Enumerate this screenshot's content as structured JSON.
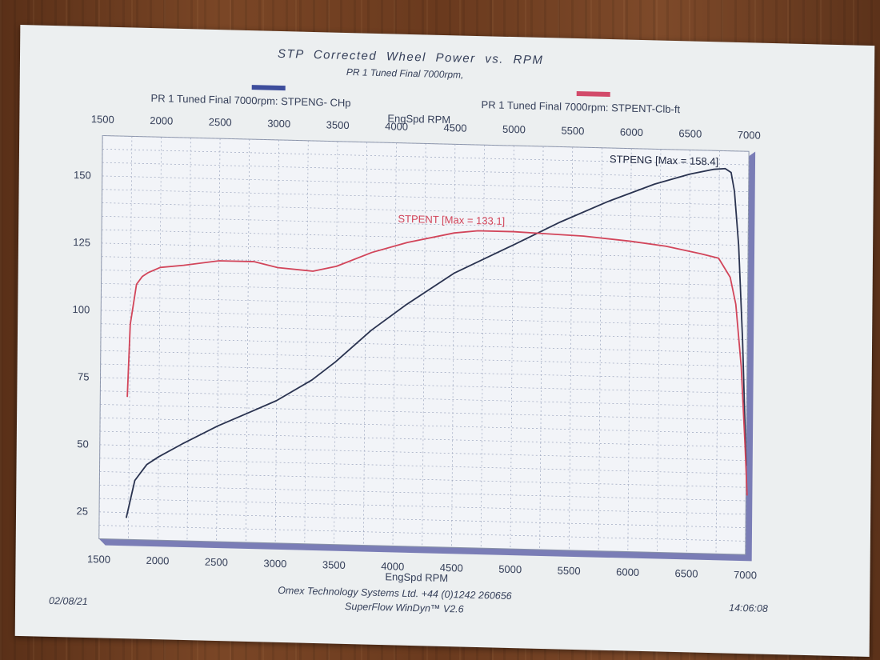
{
  "colors": {
    "power": "#2a3350",
    "torque": "#d2455a",
    "swatch_power": "#3d4d9c",
    "swatch_torque": "#d24a6a",
    "grid": "#9aa4bd",
    "plot_bg": "#f2f4f8",
    "shadow": "#7a7db6",
    "text": "#36405a"
  },
  "header": {
    "title": "STP Corrected Wheel Power vs. RPM",
    "subtitle": "PR 1 Tuned Final 7000rpm,"
  },
  "legend": {
    "power": "PR 1 Tuned Final 7000rpm: STPENG- CHp",
    "torque": "PR 1 Tuned Final 7000rpm: STPENT-Clb-ft"
  },
  "footer": {
    "date": "02/08/21",
    "company": "Omex Technology Systems Ltd. +44 (0)1242 260656",
    "software": "SuperFlow WinDyn™ V2.6",
    "time": "14:06:08"
  },
  "chart_data": {
    "type": "line",
    "xlabel": "EngSpd RPM",
    "x_top_label": "EngSpd RPM",
    "xlim": [
      1500,
      7000
    ],
    "ylim": [
      15,
      165
    ],
    "xticks": [
      1500,
      2000,
      2500,
      3000,
      3500,
      4000,
      4500,
      5000,
      5500,
      6000,
      6500,
      7000
    ],
    "yticks": [
      25,
      50,
      75,
      100,
      125,
      150
    ],
    "grid": true,
    "series": [
      {
        "name": "STPENG- CHp",
        "annotation": "STPENG [Max = 158.4]",
        "max": 158.4,
        "x": [
          1730,
          1800,
          1900,
          2000,
          2200,
          2500,
          2800,
          3000,
          3300,
          3500,
          3800,
          4100,
          4500,
          5000,
          5400,
          5800,
          6200,
          6500,
          6700,
          6800,
          6850,
          6880,
          6920,
          6960,
          7000
        ],
        "y": [
          23,
          37,
          43,
          46,
          51,
          58,
          64,
          68,
          76,
          83,
          95,
          105,
          117,
          128,
          137,
          145,
          152,
          156,
          158,
          158.4,
          157,
          150,
          130,
          95,
          48
        ]
      },
      {
        "name": "STPENT-Clb-ft",
        "annotation": "STPENT [Max = 133.1]",
        "max": 133.1,
        "x": [
          1730,
          1750,
          1800,
          1850,
          1900,
          2000,
          2200,
          2500,
          2800,
          3000,
          3300,
          3500,
          3800,
          4100,
          4500,
          4700,
          5000,
          5300,
          5600,
          6000,
          6300,
          6600,
          6750,
          6850,
          6900,
          6950,
          6990,
          7010
        ],
        "y": [
          68,
          95,
          110,
          113,
          114.5,
          116.5,
          117.5,
          119.5,
          119.5,
          117.5,
          116.5,
          118.5,
          124,
          128,
          132,
          133,
          133,
          132.5,
          132,
          130.5,
          129,
          126.5,
          125,
          118,
          108,
          85,
          55,
          37
        ]
      }
    ]
  }
}
